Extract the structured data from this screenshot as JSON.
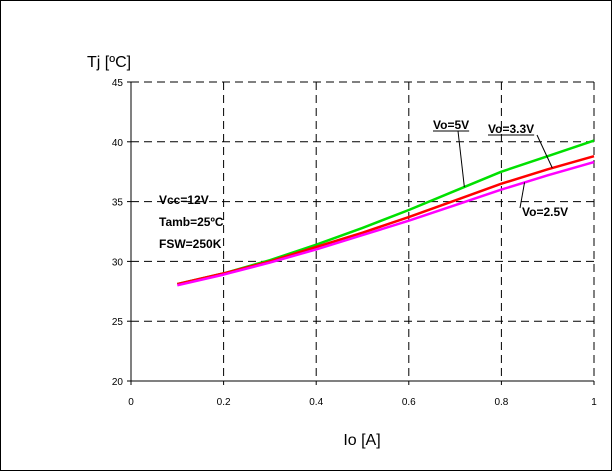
{
  "chart_data": {
    "type": "line",
    "title": "",
    "xlabel": "Io [A]",
    "ylabel": "Tj [ºC]",
    "xlim": [
      0,
      1
    ],
    "ylim": [
      20,
      45
    ],
    "xticks": [
      0,
      0.2,
      0.4,
      0.6,
      0.8,
      1
    ],
    "yticks": [
      20,
      25,
      30,
      35,
      40,
      45
    ],
    "xtick_labels": [
      "0",
      "0.2",
      "0.4",
      "0.6",
      "0.8",
      "1"
    ],
    "ytick_labels": [
      "20",
      "25",
      "30",
      "35",
      "40",
      "45"
    ],
    "grid": true,
    "grid_style": "dashed",
    "series": [
      {
        "name": "Vo=5V",
        "color": "#00e000",
        "x": [
          0.1,
          0.2,
          0.3,
          0.4,
          0.5,
          0.6,
          0.7,
          0.8,
          0.9,
          1.0
        ],
        "y": [
          28.1,
          29.0,
          30.1,
          31.4,
          32.8,
          34.3,
          35.9,
          37.5,
          38.8,
          40.1
        ]
      },
      {
        "name": "Vo=3.3V",
        "color": "#ff0000",
        "x": [
          0.1,
          0.2,
          0.3,
          0.4,
          0.5,
          0.6,
          0.7,
          0.8,
          0.9,
          1.0
        ],
        "y": [
          28.1,
          29.0,
          30.0,
          31.2,
          32.4,
          33.7,
          35.1,
          36.5,
          37.7,
          38.8
        ]
      },
      {
        "name": "Vo=2.5V",
        "color": "#ff00ff",
        "x": [
          0.1,
          0.2,
          0.3,
          0.4,
          0.5,
          0.6,
          0.7,
          0.8,
          0.9,
          1.0
        ],
        "y": [
          28.0,
          28.9,
          29.9,
          31.0,
          32.2,
          33.4,
          34.7,
          36.0,
          37.2,
          38.3
        ]
      }
    ],
    "annotations": [
      {
        "text": "Vo=5V",
        "target_series": "Vo=5V",
        "underline": true
      },
      {
        "text": "Vo=3.3V",
        "target_series": "Vo=3.3V",
        "underline": true
      },
      {
        "text": "Vo=2.5V",
        "target_series": "Vo=2.5V",
        "underline": false
      }
    ],
    "conditions": [
      "Vcc=12V",
      "Tamb=25ºC",
      "FSW=250K"
    ]
  }
}
